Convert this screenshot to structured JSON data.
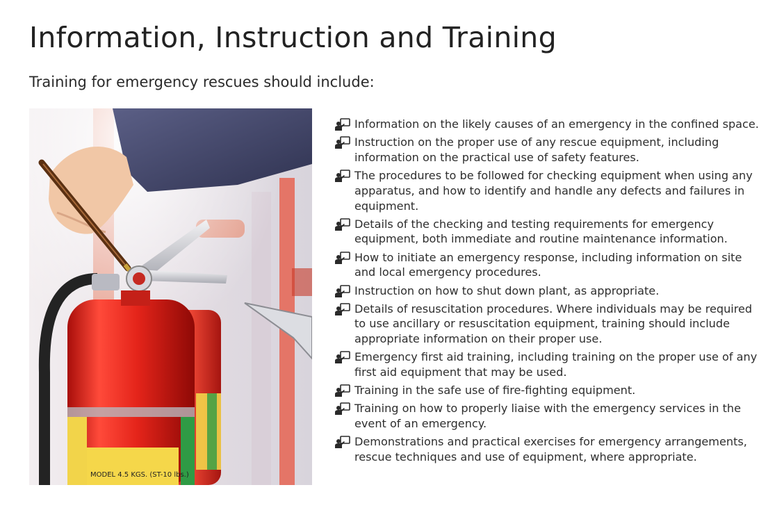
{
  "header": {
    "title": "Information, Instruction and Training",
    "subtitle": "Training for emergency rescues should include:"
  },
  "image": {
    "subject": "fire-extinguisher-inspection-photo",
    "label_text": "MODEL 4.5 KGS. (ST-10 lbs.)"
  },
  "list": {
    "icon": "training-presenter-icon",
    "items": [
      "Information on the likely causes of an emergency in the confined space.",
      "Instruction on the proper use of any rescue equipment, including information on the practical use of safety features.",
      "The procedures to be followed for checking equipment when using any apparatus, and how to identify and handle any defects and failures in equipment.",
      "Details of the checking and testing requirements for emergency equipment, both immediate and routine maintenance information.",
      "How to initiate an emergency response, including information on site and local emergency procedures.",
      "Instruction on how to shut down plant, as appropriate.",
      "Details of resuscitation procedures. Where individuals may be required to use ancillary or resuscitation equipment, training should include appropriate information on their proper use.",
      "Emergency first aid training, including training on the proper use of any first aid equipment that may be used.",
      "Training in the safe use of fire-fighting equipment.",
      "Training on how to properly liaise with the emergency services in the event of an emergency.",
      "Demonstrations and practical exercises for emergency arrangements, rescue techniques and use of equipment, where appropriate."
    ]
  },
  "colors": {
    "extinguisher_red": "#e0231b",
    "text": "#2e2e2e",
    "background": "#ffffff"
  }
}
